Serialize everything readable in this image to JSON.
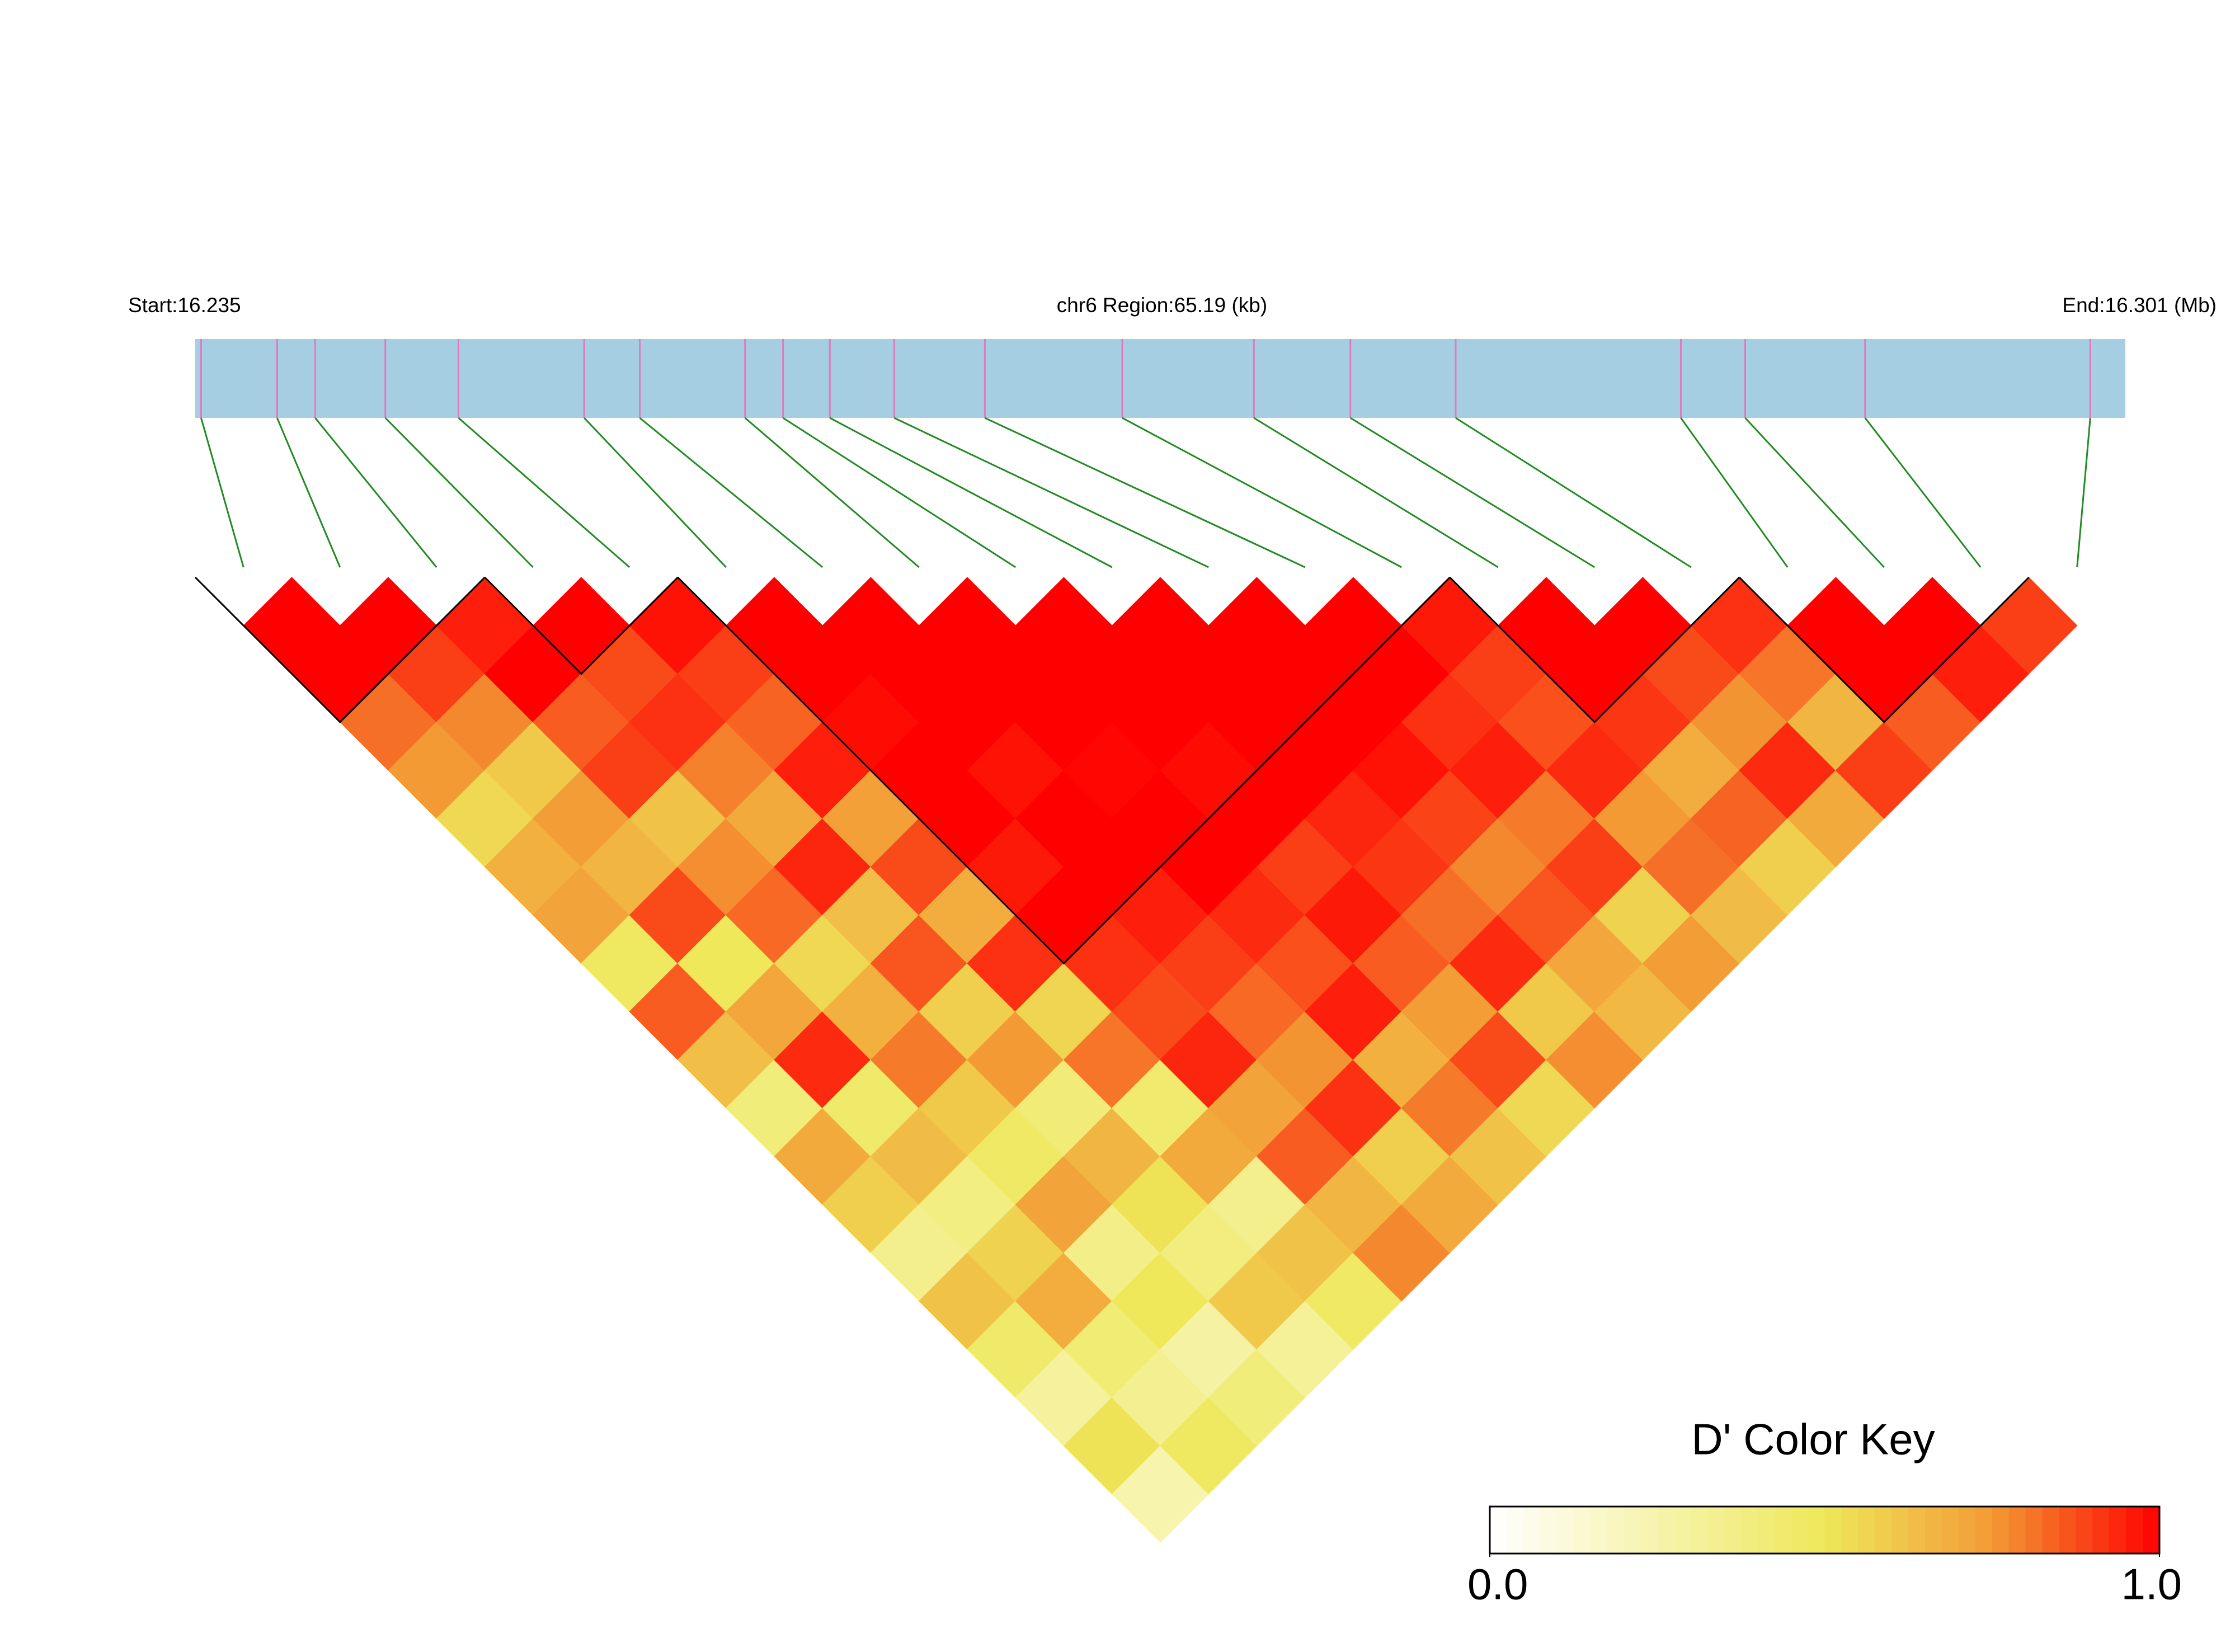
{
  "chart_data": {
    "type": "heatmap",
    "start_label": "Start:16.235",
    "region_label": "chr6 Region:65.19 (kb)",
    "end_label": "End:16.301 (Mb)",
    "xlim": [
      16.235,
      16.301
    ],
    "x": [
      16.2352,
      16.2378,
      16.2391,
      16.2415,
      16.244,
      16.2483,
      16.2502,
      16.2538,
      16.2551,
      16.2567,
      16.2589,
      16.262,
      16.2667,
      16.2712,
      16.2745,
      16.2781,
      16.2858,
      16.288,
      16.2921,
      16.2998
    ],
    "values": [
      [
        1,
        1,
        0.82,
        0.75,
        0.55,
        0.68,
        0.72,
        0.48,
        0.85,
        0.63,
        0.4,
        0.7,
        0.58,
        0.35,
        0.62,
        0.45,
        0.3,
        0.52,
        0.25
      ],
      [
        1,
        0.9,
        0.78,
        0.6,
        0.74,
        0.66,
        0.88,
        0.5,
        0.71,
        0.93,
        0.45,
        0.64,
        0.38,
        0.57,
        0.69,
        0.42,
        0.33,
        0.48
      ],
      [
        0.95,
        1,
        0.85,
        0.9,
        0.62,
        0.77,
        0.83,
        0.55,
        0.68,
        0.8,
        0.6,
        0.47,
        0.72,
        0.36,
        0.5,
        0.28,
        0.4
      ],
      [
        1,
        0.88,
        0.92,
        0.79,
        0.7,
        0.94,
        0.63,
        0.86,
        0.58,
        0.75,
        0.41,
        0.66,
        0.52,
        0.39,
        0.6,
        0.31
      ],
      [
        0.97,
        0.9,
        0.84,
        0.95,
        0.73,
        0.88,
        0.69,
        0.92,
        0.56,
        0.81,
        0.44,
        0.7,
        0.35,
        0.62,
        0.47
      ],
      [
        1,
        1,
        0.98,
        1,
        1,
        0.96,
        1,
        0.92,
        0.88,
        0.94,
        0.72,
        0.85,
        0.66,
        0.78
      ],
      [
        1,
        1,
        1,
        0.97,
        1,
        1,
        0.95,
        0.9,
        0.83,
        0.76,
        0.92,
        0.58,
        0.7
      ],
      [
        1,
        1,
        1,
        0.99,
        1,
        1,
        0.93,
        0.87,
        0.95,
        0.68,
        0.8,
        0.62
      ],
      [
        1,
        1,
        1,
        0.98,
        1,
        0.9,
        0.96,
        0.85,
        0.74,
        0.88,
        0.55
      ],
      [
        1,
        1,
        1,
        1,
        0.94,
        0.91,
        0.82,
        0.93,
        0.6,
        0.77
      ],
      [
        1,
        1,
        1,
        0.97,
        0.89,
        0.78,
        0.86,
        0.71,
        0.65
      ],
      [
        1,
        1,
        0.92,
        0.95,
        0.8,
        0.9,
        0.57,
        0.74
      ],
      [
        0.96,
        0.9,
        0.87,
        0.93,
        0.75,
        0.82,
        0.64
      ],
      [
        1,
        1,
        0.91,
        0.69,
        0.84,
        0.58
      ],
      [
        1,
        0.88,
        0.76,
        0.93,
        0.7
      ],
      [
        0.92,
        0.81,
        0.66,
        0.9
      ],
      [
        1,
        1,
        0.85
      ],
      [
        1,
        0.95
      ],
      [
        0.9
      ]
    ],
    "blocks": [
      [
        0,
        2
      ],
      [
        3,
        4
      ],
      [
        5,
        12
      ],
      [
        13,
        15
      ],
      [
        16,
        18
      ]
    ],
    "bar_color": "#a6cee3",
    "snp_line_color": "#e377c2",
    "connector_color": "#228b22",
    "block_outline_color": "#000000",
    "colorscale": [
      [
        0,
        "#ffffff"
      ],
      [
        0.5,
        "#eee85a"
      ],
      [
        0.75,
        "#f39a35"
      ],
      [
        1,
        "#ff0000"
      ]
    ],
    "colorbar_title": "D' Color Key",
    "clim": [
      0,
      1
    ],
    "colorbar_ticks": [
      {
        "value": 0,
        "label": "0.0"
      },
      {
        "value": 1,
        "label": "1.0"
      }
    ]
  }
}
